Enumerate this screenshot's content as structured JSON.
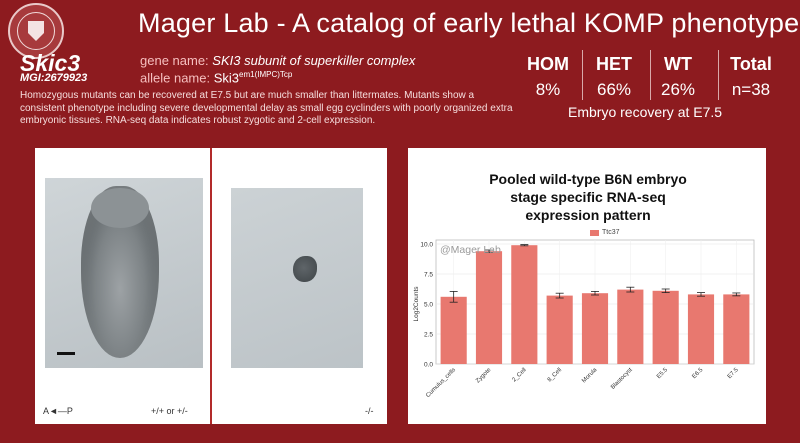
{
  "header": {
    "title": "Mager Lab - A catalog of early lethal KOMP phenotypes",
    "logo_icon": "university-seal-icon"
  },
  "gene": {
    "symbol": "Skic3",
    "mgi": "MGI:2679923",
    "gene_label": "gene name:",
    "gene_name": "SKI3 subunit of superkiller complex",
    "allele_label": "allele name:",
    "allele_base": "Ski3",
    "allele_sup": "em1(IMPC)Tcp"
  },
  "description": "Homozygous mutants can be recovered at E7.5 but are much smaller than littermates.  Mutants show a consistent phenotype including severe developmental delay as small egg cyclinders with poorly organized extra embryonic tissues. RNA-seq data indicates robust zygotic and 2-cell expression.",
  "stats": {
    "headers": [
      "HOM",
      "HET",
      "WT",
      "Total"
    ],
    "values": [
      "8%",
      "66%",
      "26%",
      "n=38"
    ],
    "caption": "Embryo recovery at E7.5"
  },
  "images": {
    "axis_label": "A◄—P",
    "genotype_left": "+/+ or +/-",
    "genotype_right": "-/-"
  },
  "chart_data": {
    "type": "bar",
    "title_lines": [
      "Pooled wild-type B6N embryo",
      "stage specific RNA-seq",
      "expression pattern"
    ],
    "watermark": "@Mager Lab",
    "legend": "Ttc37",
    "ylabel": "Log2Counts",
    "ylim": [
      0,
      10
    ],
    "yticks": [
      "0.0",
      "2.5",
      "5.0",
      "7.5",
      "10.0"
    ],
    "categories": [
      "Cumulus_cells",
      "Zygote",
      "2_Cell",
      "8_Cell",
      "Morula",
      "Blastocyst",
      "E5.5",
      "E6.5",
      "E7.5"
    ],
    "values": [
      5.6,
      9.4,
      9.9,
      5.7,
      5.9,
      6.2,
      6.1,
      5.8,
      5.8
    ],
    "errors": [
      0.45,
      0.1,
      0.05,
      0.2,
      0.15,
      0.2,
      0.15,
      0.15,
      0.12
    ],
    "bar_color": "#e8786f"
  }
}
